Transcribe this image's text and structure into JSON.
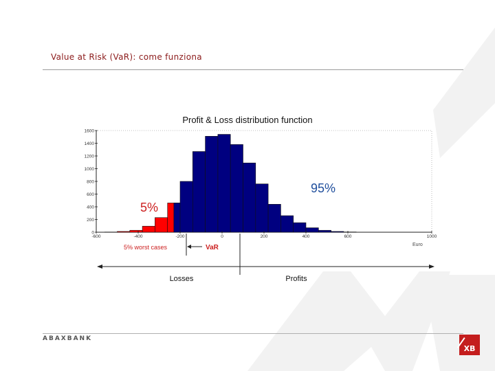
{
  "slide": {
    "title": "Value at Risk (VaR): come funziona"
  },
  "footer": {
    "brand": "ABAXBANK",
    "logo_text": "XB"
  },
  "colors": {
    "bar_main": "#000080",
    "bar_tail": "#ff0000",
    "title_red": "#8b1a1a",
    "label_blue": "#1f4e9c",
    "label_red": "#cc2020"
  },
  "chart_data": {
    "type": "bar",
    "title": "Profit & Loss distribution function",
    "x_unit": "Euro",
    "xlim": [
      -600,
      1000
    ],
    "ylim": [
      0,
      1600
    ],
    "x_ticks": [
      -600,
      -400,
      -200,
      0,
      200,
      400,
      600,
      1000
    ],
    "y_ticks": [
      0,
      200,
      400,
      600,
      800,
      1000,
      1200,
      1400,
      1600
    ],
    "bin_width": 60,
    "bins": [
      {
        "x0": -560,
        "value": 3,
        "tail": true
      },
      {
        "x0": -500,
        "value": 12,
        "tail": true
      },
      {
        "x0": -440,
        "value": 30,
        "tail": true
      },
      {
        "x0": -380,
        "value": 95,
        "tail": true
      },
      {
        "x0": -320,
        "value": 230,
        "tail": true
      },
      {
        "x0": -260,
        "value": 460,
        "tail": true
      },
      {
        "x0": -230,
        "value": 460,
        "tail": false
      },
      {
        "x0": -200,
        "value": 800,
        "tail": false
      },
      {
        "x0": -140,
        "value": 1270,
        "tail": false
      },
      {
        "x0": -80,
        "value": 1510,
        "tail": false
      },
      {
        "x0": -20,
        "value": 1540,
        "tail": false
      },
      {
        "x0": 40,
        "value": 1380,
        "tail": false
      },
      {
        "x0": 100,
        "value": 1090,
        "tail": false
      },
      {
        "x0": 160,
        "value": 760,
        "tail": false
      },
      {
        "x0": 220,
        "value": 440,
        "tail": false
      },
      {
        "x0": 280,
        "value": 260,
        "tail": false
      },
      {
        "x0": 340,
        "value": 150,
        "tail": false
      },
      {
        "x0": 400,
        "value": 70,
        "tail": false
      },
      {
        "x0": 460,
        "value": 30,
        "tail": false
      },
      {
        "x0": 520,
        "value": 12,
        "tail": false
      },
      {
        "x0": 580,
        "value": 4,
        "tail": false
      }
    ],
    "annotations": {
      "tail_pct": "5%",
      "body_pct": "95%",
      "worst_cases": "5% worst cases",
      "var_label": "VaR",
      "losses": "Losses",
      "profits": "Profits"
    }
  }
}
